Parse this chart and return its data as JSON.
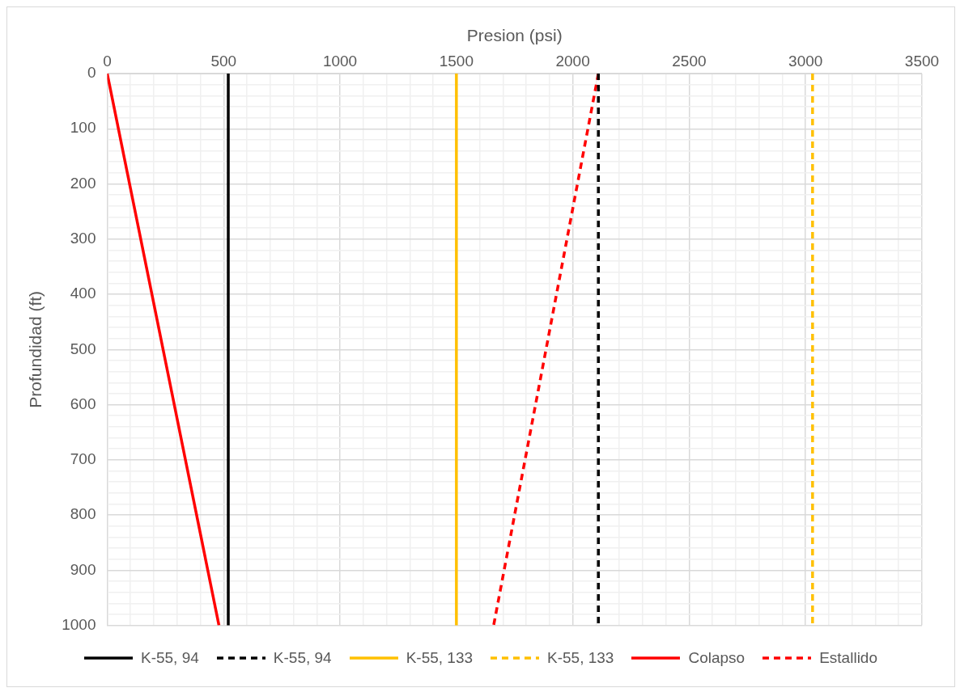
{
  "chart_data": {
    "type": "line",
    "xlabel": "Presion (psi)",
    "ylabel": "Profundidad (ft)",
    "xlim": [
      0,
      3500
    ],
    "xticks": [
      0,
      {
        "value": 100,
        "label": null
      },
      {
        "value": 200,
        "label": null
      },
      {
        "value": 300,
        "label": null
      },
      {
        "value": 400,
        "label": null
      },
      500,
      {
        "value": 600,
        "label": null
      },
      {
        "value": 700,
        "label": null
      },
      {
        "value": 800,
        "label": null
      },
      {
        "value": 900,
        "label": null
      },
      1000,
      {
        "value": 1100,
        "label": null
      },
      {
        "value": 1200,
        "label": null
      },
      {
        "value": 1300,
        "label": null
      },
      {
        "value": 1400,
        "label": null
      },
      1500,
      {
        "value": 1600,
        "label": null
      },
      {
        "value": 1700,
        "label": null
      },
      {
        "value": 1800,
        "label": null
      },
      {
        "value": 1900,
        "label": null
      },
      2000,
      {
        "value": 2100,
        "label": null
      },
      {
        "value": 2200,
        "label": null
      },
      {
        "value": 2300,
        "label": null
      },
      {
        "value": 2400,
        "label": null
      },
      2500,
      {
        "value": 2600,
        "label": null
      },
      {
        "value": 2700,
        "label": null
      },
      {
        "value": 2800,
        "label": null
      },
      {
        "value": 2900,
        "label": null
      },
      3000,
      {
        "value": 3100,
        "label": null
      },
      {
        "value": 3200,
        "label": null
      },
      {
        "value": 3300,
        "label": null
      },
      {
        "value": 3400,
        "label": null
      },
      3500
    ],
    "ylim": [
      1000,
      0
    ],
    "yticks": [
      0,
      {
        "value": 20,
        "label": null
      },
      {
        "value": 40,
        "label": null
      },
      {
        "value": 60,
        "label": null
      },
      {
        "value": 80,
        "label": null
      },
      100,
      {
        "value": 120,
        "label": null
      },
      {
        "value": 140,
        "label": null
      },
      {
        "value": 160,
        "label": null
      },
      {
        "value": 180,
        "label": null
      },
      200,
      {
        "value": 220,
        "label": null
      },
      {
        "value": 240,
        "label": null
      },
      {
        "value": 260,
        "label": null
      },
      {
        "value": 280,
        "label": null
      },
      300,
      {
        "value": 320,
        "label": null
      },
      {
        "value": 340,
        "label": null
      },
      {
        "value": 360,
        "label": null
      },
      {
        "value": 380,
        "label": null
      },
      400,
      {
        "value": 420,
        "label": null
      },
      {
        "value": 440,
        "label": null
      },
      {
        "value": 460,
        "label": null
      },
      {
        "value": 480,
        "label": null
      },
      500,
      {
        "value": 520,
        "label": null
      },
      {
        "value": 540,
        "label": null
      },
      {
        "value": 560,
        "label": null
      },
      {
        "value": 580,
        "label": null
      },
      600,
      {
        "value": 620,
        "label": null
      },
      {
        "value": 640,
        "label": null
      },
      {
        "value": 660,
        "label": null
      },
      {
        "value": 680,
        "label": null
      },
      700,
      {
        "value": 720,
        "label": null
      },
      {
        "value": 740,
        "label": null
      },
      {
        "value": 760,
        "label": null
      },
      {
        "value": 780,
        "label": null
      },
      800,
      {
        "value": 820,
        "label": null
      },
      {
        "value": 840,
        "label": null
      },
      {
        "value": 860,
        "label": null
      },
      {
        "value": 880,
        "label": null
      },
      900,
      {
        "value": 920,
        "label": null
      },
      {
        "value": 940,
        "label": null
      },
      {
        "value": 960,
        "label": null
      },
      {
        "value": 980,
        "label": null
      },
      1000
    ],
    "grid": true,
    "legend": "bottom",
    "marker": "none",
    "series": [
      {
        "name": "K-55, 94",
        "color": "#000000",
        "line_style": "solid",
        "x": [
          520,
          520
        ],
        "values": [
          0,
          1000
        ]
      },
      {
        "name": "K-55, 94",
        "color": "#000000",
        "line_style": "dashed",
        "x": [
          2110,
          2110
        ],
        "values": [
          0,
          1000
        ]
      },
      {
        "name": "K-55, 133",
        "color": "#ffc000",
        "line_style": "solid",
        "x": [
          1500,
          1500
        ],
        "values": [
          0,
          1000
        ]
      },
      {
        "name": "K-55, 133",
        "color": "#ffc000",
        "line_style": "dashed",
        "x": [
          3030,
          3030
        ],
        "values": [
          0,
          1000
        ]
      },
      {
        "name": "Colapso",
        "color": "#ff0000",
        "line_style": "solid",
        "x": [
          0,
          480
        ],
        "values": [
          0,
          1000
        ]
      },
      {
        "name": "Estallido",
        "color": "#ff0000",
        "line_style": "dashed",
        "x": [
          2110,
          1660
        ],
        "values": [
          0,
          1000
        ]
      }
    ]
  }
}
